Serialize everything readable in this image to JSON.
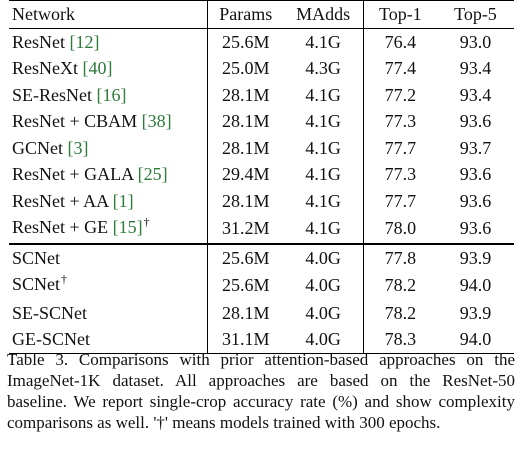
{
  "table": {
    "headers": [
      "Network",
      "Params",
      "MAdds",
      "Top-1",
      "Top-5"
    ],
    "group_a": [
      {
        "name": "ResNet ",
        "ref": "[12]",
        "dagger": "",
        "params": "25.6M",
        "madds": "4.1G",
        "top1": "76.4",
        "top5": "93.0"
      },
      {
        "name": "ResNeXt ",
        "ref": "[40]",
        "dagger": "",
        "params": "25.0M",
        "madds": "4.3G",
        "top1": "77.4",
        "top5": "93.4"
      },
      {
        "name": "SE-ResNet ",
        "ref": "[16]",
        "dagger": "",
        "params": "28.1M",
        "madds": "4.1G",
        "top1": "77.2",
        "top5": "93.4"
      },
      {
        "name": "ResNet + CBAM ",
        "ref": "[38]",
        "dagger": "",
        "params": "28.1M",
        "madds": "4.1G",
        "top1": "77.3",
        "top5": "93.6"
      },
      {
        "name": "GCNet ",
        "ref": "[3]",
        "dagger": "",
        "params": "28.1M",
        "madds": "4.1G",
        "top1": "77.7",
        "top5": "93.7"
      },
      {
        "name": "ResNet + GALA ",
        "ref": "[25]",
        "dagger": "",
        "params": "29.4M",
        "madds": "4.1G",
        "top1": "77.3",
        "top5": "93.6"
      },
      {
        "name": "ResNet + AA ",
        "ref": "[1]",
        "dagger": "",
        "params": "28.1M",
        "madds": "4.1G",
        "top1": "77.7",
        "top5": "93.6"
      },
      {
        "name": "ResNet + GE ",
        "ref": "[15]",
        "dagger": "†",
        "params": "31.2M",
        "madds": "4.1G",
        "top1": "78.0",
        "top5": "93.6"
      }
    ],
    "group_b": [
      {
        "name": "SCNet",
        "ref": "",
        "dagger": "",
        "params": "25.6M",
        "madds": "4.0G",
        "top1": "77.8",
        "top5": "93.9"
      },
      {
        "name": "SCNet",
        "ref": "",
        "dagger": "†",
        "params": "25.6M",
        "madds": "4.0G",
        "top1": "78.2",
        "top5": "94.0"
      },
      {
        "name": "SE-SCNet",
        "ref": "",
        "dagger": "",
        "params": "28.1M",
        "madds": "4.0G",
        "top1": "78.2",
        "top5": "93.9"
      },
      {
        "name": "GE-SCNet",
        "ref": "",
        "dagger": "",
        "params": "31.1M",
        "madds": "4.0G",
        "top1": "78.3",
        "top5": "94.0"
      }
    ]
  },
  "caption": "Table 3. Comparisons with prior attention-based approaches on the ImageNet-1K dataset. All approaches are based on the ResNet-50 baseline. We report single-crop accuracy rate (%) and show complexity comparisons as well. '†' means models trained with 300 epochs.",
  "colors": {
    "reference_link": "#2d7a3a",
    "text": "#111111"
  }
}
